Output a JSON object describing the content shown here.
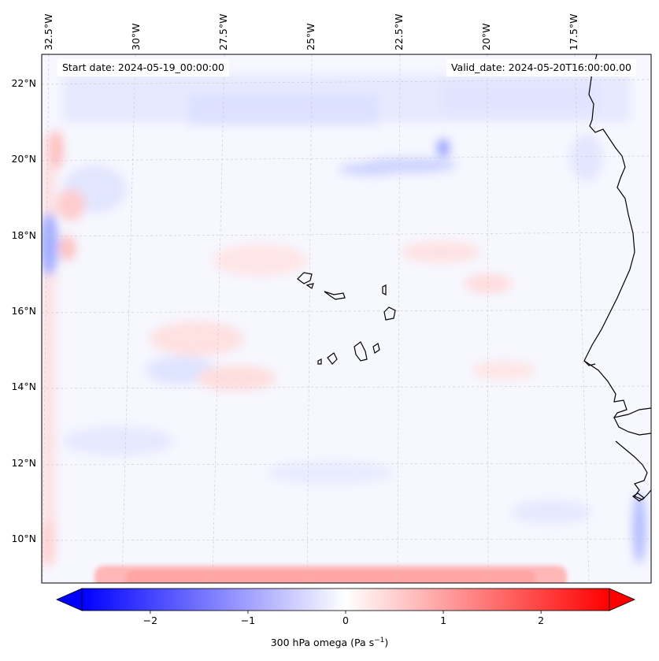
{
  "map": {
    "start_date_text": "Start date: 2024-05-19_00:00:00",
    "valid_date_text": "Valid_date: 2024-05-20T16:00:00.00",
    "variable": "300 hPa omega",
    "top_lon_labels": [
      "32.5°W",
      "30°W",
      "27.5°W",
      "25°W",
      "22.5°W",
      "20°W",
      "17.5°W"
    ],
    "left_lat_labels": [
      "22°N",
      "20°N",
      "18°N",
      "16°N",
      "14°N",
      "12°N",
      "10°N"
    ],
    "colors": {
      "negative": "#0000ff",
      "zero": "#ffffff",
      "positive": "#ff0000",
      "coastline": "#000000",
      "gridline": "#c8c8c8"
    }
  },
  "colorbar": {
    "min": -2.7,
    "max": 2.7,
    "tick_values": [
      -2,
      -1,
      0,
      1,
      2
    ],
    "tick_labels": [
      "−2",
      "−1",
      "0",
      "1",
      "2"
    ],
    "label_text": "300 hPa omega (Pa s",
    "label_exponent": "−1",
    "label_close": ")"
  }
}
